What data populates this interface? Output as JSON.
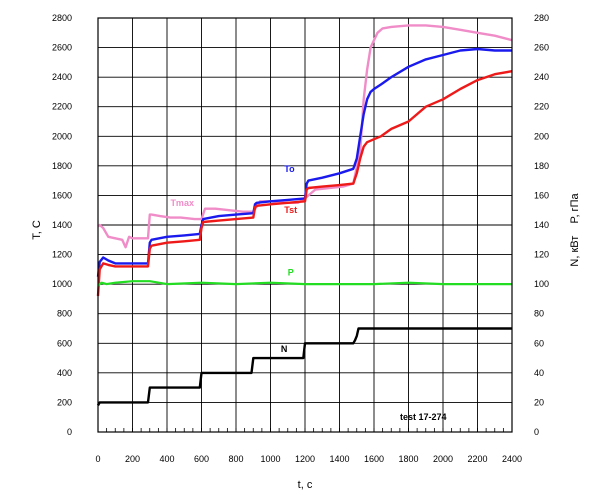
{
  "chart_data": {
    "type": "line",
    "xlabel": "t, c",
    "ylabel_left": "T, C",
    "ylabel_right": "N, кВт    P, гПа",
    "xlim": [
      0,
      2400
    ],
    "ylim_left": [
      0,
      2800
    ],
    "ylim_right": [
      0,
      280
    ],
    "grid": true,
    "x_ticks": [
      "0",
      "200",
      "400",
      "600",
      "800",
      "1000",
      "1200",
      "1400",
      "1600",
      "1800",
      "2000",
      "2200",
      "2400"
    ],
    "y_left_ticks": [
      "0",
      "200",
      "400",
      "600",
      "800",
      "1000",
      "1200",
      "1400",
      "1600",
      "1800",
      "2000",
      "2200",
      "2400",
      "2600",
      "2800"
    ],
    "y_right_ticks": [
      "0",
      "20",
      "40",
      "60",
      "80",
      "100",
      "120",
      "140",
      "160",
      "180",
      "200",
      "220",
      "240",
      "260",
      "280"
    ],
    "annotation": "test 17-274",
    "series": [
      {
        "name": "Tmax",
        "color": "#f08cc8",
        "axis": "left",
        "x": [
          0,
          10,
          30,
          60,
          100,
          140,
          160,
          180,
          200,
          250,
          290,
          300,
          310,
          360,
          420,
          480,
          560,
          600,
          620,
          680,
          760,
          840,
          900,
          940,
          1000,
          1080,
          1160,
          1200,
          1260,
          1340,
          1420,
          1480,
          1520,
          1540,
          1560,
          1580,
          1600,
          1620,
          1650,
          1700,
          1800,
          1900,
          2000,
          2100,
          2200,
          2300,
          2400
        ],
        "values": [
          1390,
          1400,
          1380,
          1320,
          1310,
          1300,
          1250,
          1320,
          1310,
          1310,
          1310,
          1470,
          1470,
          1460,
          1450,
          1450,
          1440,
          1440,
          1510,
          1510,
          1500,
          1490,
          1490,
          1560,
          1560,
          1550,
          1550,
          1580,
          1640,
          1650,
          1660,
          1680,
          1900,
          2250,
          2450,
          2600,
          2650,
          2700,
          2730,
          2740,
          2750,
          2750,
          2740,
          2720,
          2700,
          2680,
          2650
        ]
      },
      {
        "name": "To",
        "color": "#1a1aee",
        "axis": "left",
        "x": [
          0,
          10,
          30,
          60,
          100,
          200,
          290,
          300,
          310,
          400,
          500,
          590,
          600,
          610,
          700,
          800,
          900,
          910,
          920,
          1000,
          1100,
          1200,
          1210,
          1220,
          1300,
          1400,
          1480,
          1500,
          1520,
          1540,
          1560,
          1580,
          1600,
          1640,
          1700,
          1800,
          1900,
          2000,
          2100,
          2200,
          2300,
          2400
        ],
        "values": [
          1050,
          1150,
          1180,
          1160,
          1140,
          1140,
          1140,
          1280,
          1300,
          1320,
          1330,
          1340,
          1400,
          1440,
          1460,
          1470,
          1480,
          1540,
          1550,
          1560,
          1570,
          1580,
          1680,
          1700,
          1720,
          1750,
          1780,
          1850,
          2000,
          2150,
          2250,
          2300,
          2320,
          2350,
          2400,
          2470,
          2520,
          2550,
          2580,
          2590,
          2580,
          2580
        ]
      },
      {
        "name": "Tst",
        "color": "#ee1a1a",
        "axis": "left",
        "x": [
          0,
          10,
          30,
          60,
          100,
          200,
          290,
          300,
          310,
          400,
          500,
          590,
          600,
          610,
          700,
          800,
          900,
          910,
          920,
          1000,
          1100,
          1200,
          1210,
          1220,
          1300,
          1400,
          1480,
          1500,
          1520,
          1540,
          1560,
          1580,
          1600,
          1640,
          1700,
          1800,
          1900,
          2000,
          2100,
          2200,
          2300,
          2400
        ],
        "values": [
          920,
          1100,
          1140,
          1130,
          1120,
          1120,
          1120,
          1240,
          1260,
          1280,
          1290,
          1300,
          1380,
          1420,
          1430,
          1440,
          1450,
          1520,
          1530,
          1540,
          1550,
          1560,
          1640,
          1650,
          1660,
          1670,
          1680,
          1750,
          1850,
          1930,
          1960,
          1970,
          1980,
          2000,
          2050,
          2100,
          2200,
          2250,
          2320,
          2380,
          2420,
          2440
        ]
      },
      {
        "name": "P",
        "color": "#22dd22",
        "axis": "right",
        "x": [
          0,
          20,
          50,
          100,
          200,
          300,
          400,
          600,
          800,
          1000,
          1200,
          1400,
          1600,
          1800,
          2000,
          2200,
          2400
        ],
        "values": [
          99,
          101,
          100,
          101,
          102,
          102,
          100,
          101,
          100,
          101,
          100,
          100,
          100,
          101,
          100,
          100,
          100
        ]
      },
      {
        "name": "N",
        "color": "#000000",
        "axis": "right",
        "x": [
          0,
          10,
          290,
          300,
          590,
          600,
          890,
          900,
          1190,
          1200,
          1480,
          1490,
          1500,
          1510,
          2400
        ],
        "values": [
          18,
          20,
          20,
          30,
          30,
          40,
          40,
          50,
          50,
          60,
          60,
          62,
          65,
          70,
          70
        ]
      }
    ]
  }
}
